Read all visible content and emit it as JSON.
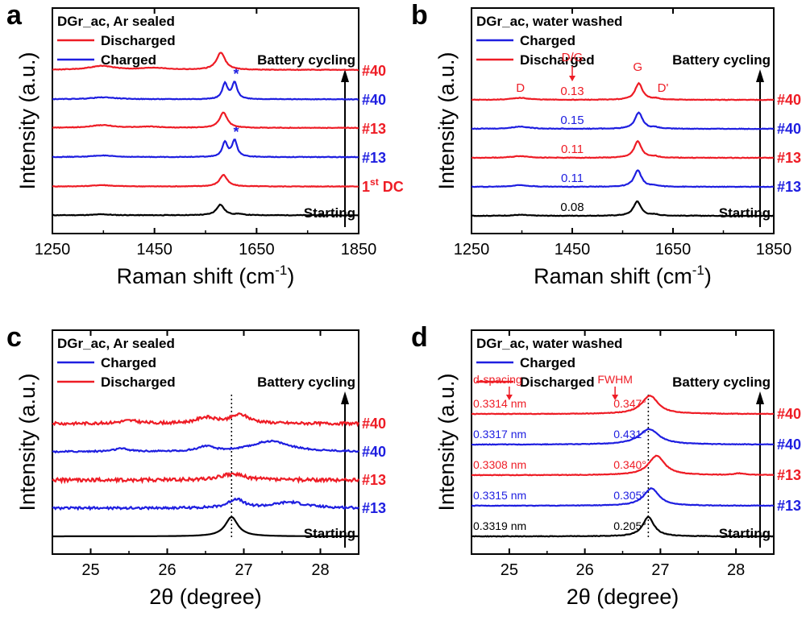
{
  "colors": {
    "red": "#ee1c25",
    "blue": "#1e1ee0",
    "black": "#000000"
  },
  "chart_data": [
    {
      "panel": "a",
      "type": "line",
      "title": "DGr_ac, Ar sealed",
      "xlabel": "Raman shift (cm",
      "xlabel_sup": "-1",
      "xlabel_close": ")",
      "ylabel": "Intensity (a.u.)",
      "xlim": [
        1250,
        1850
      ],
      "xticks": [
        1250,
        1450,
        1650,
        1850
      ],
      "legend": [
        {
          "label": "Discharged",
          "color": "#ee1c25"
        },
        {
          "label": "Charged",
          "color": "#1e1ee0"
        }
      ],
      "cycle_label": "Battery cycling",
      "series": [
        {
          "name": "Starting",
          "color": "#000000",
          "label": "Starting",
          "offset": 0,
          "baseline": 0.03,
          "peaks": [
            {
              "x": 1347,
              "h": 0.05,
              "w": 18
            },
            {
              "x": 1579,
              "h": 0.55,
              "w": 9
            },
            {
              "x": 1615,
              "h": 0.06,
              "w": 8
            }
          ]
        },
        {
          "name": "1st DC",
          "color": "#ee1c25",
          "label": "1",
          "label_sup": "st",
          "label_rest": " DC",
          "offset": 1,
          "baseline": 0.02,
          "peaks": [
            {
              "x": 1347,
              "h": 0.07,
              "w": 22
            },
            {
              "x": 1585,
              "h": 0.6,
              "w": 9
            }
          ]
        },
        {
          "name": "#13 charged",
          "color": "#1e1ee0",
          "label": "#13",
          "offset": 2,
          "baseline": 0.04,
          "peaks": [
            {
              "x": 1347,
              "h": 0.08,
              "w": 25
            },
            {
              "x": 1588,
              "h": 0.75,
              "w": 6
            },
            {
              "x": 1607,
              "h": 0.85,
              "w": 6
            }
          ],
          "star": true
        },
        {
          "name": "#13 discharged",
          "color": "#ee1c25",
          "label": "#13",
          "offset": 3,
          "baseline": 0.05,
          "peaks": [
            {
              "x": 1347,
              "h": 0.14,
              "w": 28
            },
            {
              "x": 1440,
              "h": 0.06,
              "w": 25
            },
            {
              "x": 1585,
              "h": 0.8,
              "w": 9
            }
          ]
        },
        {
          "name": "#40 charged",
          "color": "#1e1ee0",
          "label": "#40",
          "offset": 4,
          "baseline": 0.03,
          "peaks": [
            {
              "x": 1350,
              "h": 0.1,
              "w": 30
            },
            {
              "x": 1588,
              "h": 0.8,
              "w": 6
            },
            {
              "x": 1607,
              "h": 0.85,
              "w": 6
            }
          ],
          "star": true
        },
        {
          "name": "#40 discharged",
          "color": "#ee1c25",
          "label": "#40",
          "offset": 5,
          "baseline": 0.05,
          "peaks": [
            {
              "x": 1347,
              "h": 0.2,
              "w": 30
            },
            {
              "x": 1450,
              "h": 0.1,
              "w": 30
            },
            {
              "x": 1580,
              "h": 0.9,
              "w": 10
            }
          ]
        }
      ],
      "annotations": [
        {
          "text": "*",
          "series": "#13 charged"
        },
        {
          "text": "*",
          "series": "#40 charged"
        }
      ]
    },
    {
      "panel": "b",
      "type": "line",
      "title": "DGr_ac, water washed",
      "xlabel": "Raman shift (cm",
      "xlabel_sup": "-1",
      "xlabel_close": ")",
      "ylabel": "Intensity (a.u.)",
      "xlim": [
        1250,
        1850
      ],
      "xticks": [
        1250,
        1450,
        1650,
        1850
      ],
      "legend": [
        {
          "label": "Charged",
          "color": "#1e1ee0"
        },
        {
          "label": "Discharged",
          "color": "#ee1c25"
        }
      ],
      "cycle_label": "Battery cycling",
      "band_labels": {
        "D": "D",
        "G": "G",
        "Dprime": "D'",
        "DG": "D/G"
      },
      "series": [
        {
          "name": "Starting",
          "color": "#000000",
          "label": "Starting",
          "ratio": "0.08",
          "offset": 0,
          "peaks": [
            {
              "x": 1347,
              "h": 0.05,
              "w": 18
            },
            {
              "x": 1579,
              "h": 0.75,
              "w": 9
            },
            {
              "x": 1615,
              "h": 0.06,
              "w": 8
            }
          ]
        },
        {
          "name": "#13 charged",
          "color": "#1e1ee0",
          "label": "#13",
          "ratio": "0.11",
          "offset": 1,
          "peaks": [
            {
              "x": 1347,
              "h": 0.09,
              "w": 20
            },
            {
              "x": 1580,
              "h": 0.85,
              "w": 9
            },
            {
              "x": 1615,
              "h": 0.06,
              "w": 8
            }
          ]
        },
        {
          "name": "#13 discharged",
          "color": "#ee1c25",
          "label": "#13",
          "ratio": "0.11",
          "offset": 2,
          "peaks": [
            {
              "x": 1347,
              "h": 0.09,
              "w": 20
            },
            {
              "x": 1580,
              "h": 0.85,
              "w": 9
            },
            {
              "x": 1615,
              "h": 0.06,
              "w": 8
            }
          ]
        },
        {
          "name": "#40 charged",
          "color": "#1e1ee0",
          "label": "#40",
          "ratio": "0.15",
          "offset": 3,
          "peaks": [
            {
              "x": 1347,
              "h": 0.12,
              "w": 20
            },
            {
              "x": 1582,
              "h": 0.85,
              "w": 9
            },
            {
              "x": 1615,
              "h": 0.06,
              "w": 8
            }
          ]
        },
        {
          "name": "#40 discharged",
          "color": "#ee1c25",
          "label": "#40",
          "ratio": "0.13",
          "offset": 4,
          "peaks": [
            {
              "x": 1347,
              "h": 0.1,
              "w": 20
            },
            {
              "x": 1582,
              "h": 0.85,
              "w": 9
            },
            {
              "x": 1615,
              "h": 0.06,
              "w": 8
            }
          ]
        }
      ]
    },
    {
      "panel": "c",
      "type": "line",
      "title": "DGr_ac, Ar sealed",
      "xlabel": "2θ (degree)",
      "ylabel": "Intensity (a.u.)",
      "xlim": [
        24.5,
        28.5
      ],
      "xticks": [
        25,
        26,
        27,
        28
      ],
      "reference_x": 26.84,
      "legend": [
        {
          "label": "Charged",
          "color": "#1e1ee0"
        },
        {
          "label": "Discharged",
          "color": "#ee1c25"
        }
      ],
      "cycle_label": "Battery cycling",
      "series": [
        {
          "name": "Starting",
          "color": "#000000",
          "label": "Starting",
          "offset": 0,
          "noise": 0.0,
          "peaks": [
            {
              "x": 26.84,
              "h": 1.0,
              "w": 0.1
            }
          ]
        },
        {
          "name": "#13 charged",
          "color": "#1e1ee0",
          "label": "#13",
          "offset": 1,
          "noise": 0.12,
          "peaks": [
            {
              "x": 26.9,
              "h": 0.45,
              "w": 0.12
            },
            {
              "x": 27.6,
              "h": 0.3,
              "w": 0.25
            }
          ]
        },
        {
          "name": "#13 discharged",
          "color": "#ee1c25",
          "label": "#13",
          "offset": 2,
          "noise": 0.18,
          "peaks": [
            {
              "x": 26.85,
              "h": 0.3,
              "w": 0.2
            }
          ]
        },
        {
          "name": "#40 charged",
          "color": "#1e1ee0",
          "label": "#40",
          "offset": 3,
          "noise": 0.08,
          "peaks": [
            {
              "x": 25.4,
              "h": 0.15,
              "w": 0.12
            },
            {
              "x": 26.5,
              "h": 0.25,
              "w": 0.12
            },
            {
              "x": 27.35,
              "h": 0.55,
              "w": 0.3
            }
          ]
        },
        {
          "name": "#40 discharged",
          "color": "#ee1c25",
          "label": "#40",
          "offset": 4,
          "noise": 0.14,
          "peaks": [
            {
              "x": 25.5,
              "h": 0.15,
              "w": 0.15
            },
            {
              "x": 26.5,
              "h": 0.3,
              "w": 0.15
            },
            {
              "x": 26.95,
              "h": 0.45,
              "w": 0.15
            }
          ]
        }
      ]
    },
    {
      "panel": "d",
      "type": "line",
      "title": "DGr_ac, water washed",
      "xlabel": "2θ (degree)",
      "ylabel": "Intensity (a.u.)",
      "xlim": [
        24.5,
        28.5
      ],
      "xticks": [
        25,
        26,
        27,
        28
      ],
      "reference_x": 26.84,
      "legend": [
        {
          "label": "Charged",
          "color": "#1e1ee0"
        },
        {
          "label": "Discharged",
          "color": "#ee1c25"
        }
      ],
      "cycle_label": "Battery cycling",
      "header_labels": {
        "d_spacing": "d-spacing",
        "fwhm": "FWHM"
      },
      "series": [
        {
          "name": "Starting",
          "color": "#000000",
          "label": "Starting",
          "d_spacing": "0.3319 nm",
          "fwhm": "0.205°",
          "offset": 0,
          "peaks": [
            {
              "x": 26.84,
              "h": 1.0,
              "w": 0.09
            }
          ]
        },
        {
          "name": "#13 charged",
          "color": "#1e1ee0",
          "label": "#13",
          "d_spacing": "0.3315 nm",
          "fwhm": "0.305°",
          "offset": 1,
          "peaks": [
            {
              "x": 26.88,
              "h": 0.9,
              "w": 0.12
            }
          ]
        },
        {
          "name": "#13 discharged",
          "color": "#ee1c25",
          "label": "#13",
          "d_spacing": "0.3308 nm",
          "fwhm": "0.340°",
          "offset": 2,
          "peaks": [
            {
              "x": 26.95,
              "h": 1.0,
              "w": 0.13
            },
            {
              "x": 28.05,
              "h": 0.08,
              "w": 0.1
            }
          ]
        },
        {
          "name": "#40 charged",
          "color": "#1e1ee0",
          "label": "#40",
          "d_spacing": "0.3317 nm",
          "fwhm": "0.431°",
          "offset": 3,
          "peaks": [
            {
              "x": 26.85,
              "h": 0.8,
              "w": 0.16
            }
          ]
        },
        {
          "name": "#40 discharged",
          "color": "#ee1c25",
          "label": "#40",
          "d_spacing": "0.3314 nm",
          "fwhm": "0.347°",
          "offset": 4,
          "peaks": [
            {
              "x": 26.86,
              "h": 0.95,
              "w": 0.13
            }
          ]
        }
      ]
    }
  ]
}
